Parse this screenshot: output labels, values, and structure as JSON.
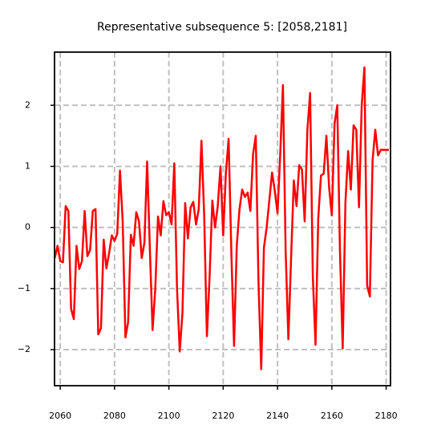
{
  "chart_data": {
    "type": "line",
    "title": "Representative subsequence 5: [2058,2181]",
    "x": [
      2058,
      2059,
      2060,
      2061,
      2062,
      2063,
      2064,
      2065,
      2066,
      2067,
      2068,
      2069,
      2070,
      2071,
      2072,
      2073,
      2074,
      2075,
      2076,
      2077,
      2078,
      2079,
      2080,
      2081,
      2082,
      2083,
      2084,
      2085,
      2086,
      2087,
      2088,
      2089,
      2090,
      2091,
      2092,
      2093,
      2094,
      2095,
      2096,
      2097,
      2098,
      2099,
      2100,
      2101,
      2102,
      2103,
      2104,
      2105,
      2106,
      2107,
      2108,
      2109,
      2110,
      2111,
      2112,
      2113,
      2114,
      2115,
      2116,
      2117,
      2118,
      2119,
      2120,
      2121,
      2122,
      2123,
      2124,
      2125,
      2126,
      2127,
      2128,
      2129,
      2130,
      2131,
      2132,
      2133,
      2134,
      2135,
      2136,
      2137,
      2138,
      2139,
      2140,
      2141,
      2142,
      2143,
      2144,
      2145,
      2146,
      2147,
      2148,
      2149,
      2150,
      2151,
      2152,
      2153,
      2154,
      2155,
      2156,
      2157,
      2158,
      2159,
      2160,
      2161,
      2162,
      2163,
      2164,
      2165,
      2166,
      2167,
      2168,
      2169,
      2170,
      2171,
      2172,
      2173,
      2174,
      2175,
      2176,
      2177,
      2178,
      2179,
      2180,
      2181
    ],
    "series": [
      {
        "color": "#ff0000",
        "values": [
          -0.5,
          -0.3,
          -0.55,
          -0.57,
          0.35,
          0.27,
          -1.33,
          -1.5,
          -0.3,
          -0.68,
          -0.55,
          0.27,
          -0.47,
          -0.37,
          0.27,
          0.3,
          -1.75,
          -1.65,
          -0.2,
          -0.67,
          -0.42,
          -0.13,
          -0.22,
          -0.1,
          0.93,
          0.1,
          -1.8,
          -1.55,
          -0.12,
          -0.3,
          0.25,
          0.1,
          -0.5,
          -0.25,
          1.08,
          -0.35,
          -1.68,
          -1.0,
          0.18,
          -0.13,
          0.43,
          0.2,
          0.25,
          0.05,
          1.05,
          -1.0,
          -2.03,
          -1.4,
          0.4,
          -0.18,
          0.33,
          0.42,
          0.05,
          0.3,
          1.42,
          0.2,
          -1.78,
          -0.8,
          0.44,
          0.0,
          0.35,
          1.0,
          -0.13,
          0.9,
          1.45,
          -0.4,
          -1.94,
          -0.3,
          0.3,
          0.62,
          0.5,
          0.57,
          0.27,
          1.2,
          1.5,
          -0.9,
          -2.32,
          -0.33,
          0.0,
          0.45,
          0.9,
          0.6,
          0.23,
          1.2,
          2.33,
          -0.4,
          -1.83,
          -0.5,
          0.77,
          0.35,
          1.02,
          0.95,
          0.1,
          1.6,
          2.2,
          -0.8,
          -1.92,
          0.15,
          0.85,
          0.88,
          1.5,
          0.65,
          0.2,
          1.7,
          2.0,
          -0.4,
          -1.98,
          0.4,
          1.25,
          0.62,
          1.67,
          1.6,
          0.33,
          2.0,
          2.62,
          -0.95,
          -1.13,
          1.1,
          1.6,
          1.18,
          1.27,
          1.27,
          1.27,
          1.27
        ]
      }
    ],
    "xlim": [
      2057.9,
      2181.6
    ],
    "ylim": [
      -2.59,
      2.87
    ],
    "xticks": [
      2060,
      2080,
      2100,
      2120,
      2140,
      2160,
      2180
    ],
    "yticks": [
      {
        "value": -2,
        "label": "−2"
      },
      {
        "value": -1,
        "label": "−1"
      },
      0,
      1,
      2
    ],
    "grid": true
  }
}
